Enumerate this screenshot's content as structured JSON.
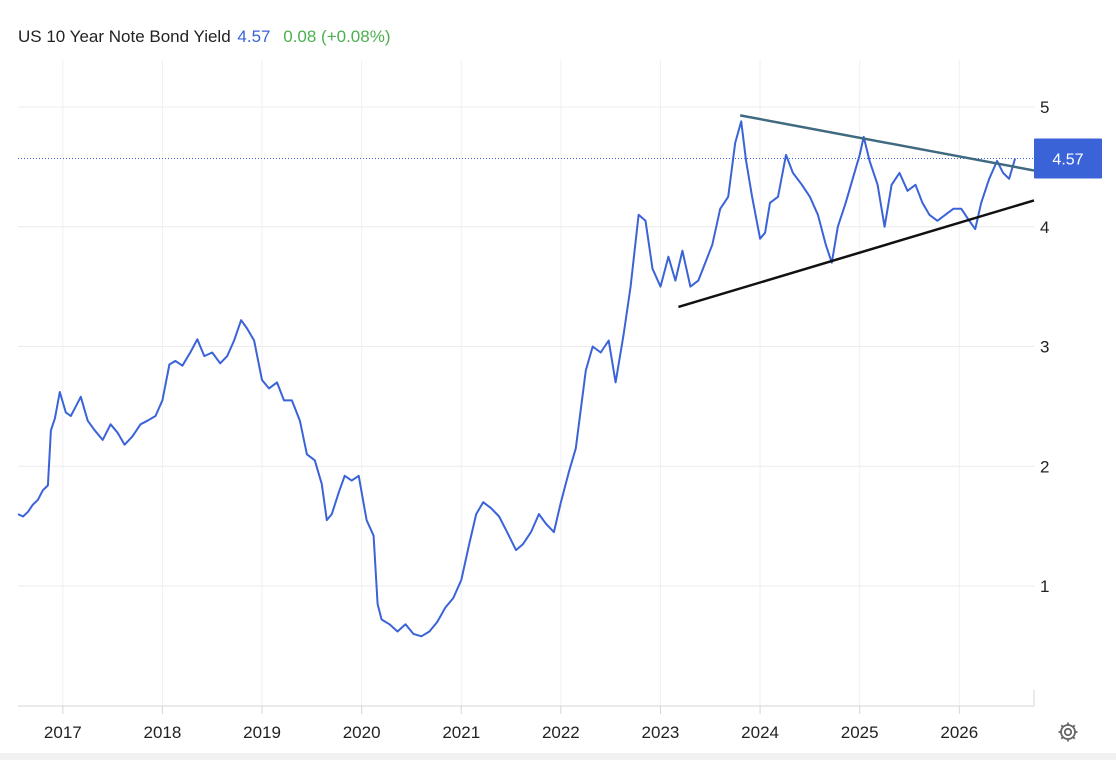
{
  "header": {
    "title": "US 10 Year Note Bond Yield",
    "price": "4.57",
    "change": "0.08 (+0.08%)"
  },
  "settings_icon": "gear-icon",
  "colors": {
    "line": "#3a63d8",
    "change_positive": "#4caf50",
    "upper_trendline": "#3f6a80",
    "lower_trendline": "#111111",
    "badge": "#3a63d8"
  },
  "chart_data": {
    "type": "line",
    "title": "",
    "xlabel": "",
    "ylabel": "",
    "x_ticks": [
      "2017",
      "2018",
      "2019",
      "2020",
      "2021",
      "2022",
      "2023",
      "2024",
      "2025",
      "2026"
    ],
    "y_ticks": [
      1,
      2,
      3,
      4,
      5
    ],
    "xlim": [
      2016.55,
      2026.75
    ],
    "ylim": [
      0,
      5.5
    ],
    "grid": true,
    "y_axis_position": "right",
    "last_value_label": "4.57",
    "last_value": 4.57,
    "series": [
      {
        "points": [
          [
            2016.55,
            1.6
          ],
          [
            2016.6,
            1.58
          ],
          [
            2016.65,
            1.62
          ],
          [
            2016.7,
            1.68
          ],
          [
            2016.75,
            1.72
          ],
          [
            2016.8,
            1.8
          ],
          [
            2016.85,
            1.84
          ],
          [
            2016.88,
            2.3
          ],
          [
            2016.92,
            2.4
          ],
          [
            2016.97,
            2.62
          ],
          [
            2017.03,
            2.45
          ],
          [
            2017.08,
            2.42
          ],
          [
            2017.13,
            2.5
          ],
          [
            2017.18,
            2.58
          ],
          [
            2017.25,
            2.38
          ],
          [
            2017.32,
            2.3
          ],
          [
            2017.4,
            2.22
          ],
          [
            2017.48,
            2.35
          ],
          [
            2017.55,
            2.28
          ],
          [
            2017.62,
            2.18
          ],
          [
            2017.7,
            2.25
          ],
          [
            2017.78,
            2.35
          ],
          [
            2017.85,
            2.38
          ],
          [
            2017.93,
            2.42
          ],
          [
            2018.0,
            2.55
          ],
          [
            2018.07,
            2.85
          ],
          [
            2018.13,
            2.88
          ],
          [
            2018.2,
            2.84
          ],
          [
            2018.28,
            2.95
          ],
          [
            2018.35,
            3.06
          ],
          [
            2018.42,
            2.92
          ],
          [
            2018.5,
            2.95
          ],
          [
            2018.58,
            2.86
          ],
          [
            2018.65,
            2.92
          ],
          [
            2018.72,
            3.05
          ],
          [
            2018.79,
            3.22
          ],
          [
            2018.85,
            3.15
          ],
          [
            2018.92,
            3.05
          ],
          [
            2019.0,
            2.72
          ],
          [
            2019.07,
            2.65
          ],
          [
            2019.15,
            2.7
          ],
          [
            2019.22,
            2.55
          ],
          [
            2019.3,
            2.55
          ],
          [
            2019.38,
            2.38
          ],
          [
            2019.45,
            2.1
          ],
          [
            2019.53,
            2.05
          ],
          [
            2019.6,
            1.85
          ],
          [
            2019.65,
            1.55
          ],
          [
            2019.7,
            1.6
          ],
          [
            2019.77,
            1.78
          ],
          [
            2019.83,
            1.92
          ],
          [
            2019.9,
            1.88
          ],
          [
            2019.97,
            1.92
          ],
          [
            2020.05,
            1.55
          ],
          [
            2020.12,
            1.42
          ],
          [
            2020.16,
            0.85
          ],
          [
            2020.2,
            0.72
          ],
          [
            2020.28,
            0.68
          ],
          [
            2020.36,
            0.62
          ],
          [
            2020.44,
            0.68
          ],
          [
            2020.52,
            0.6
          ],
          [
            2020.6,
            0.58
          ],
          [
            2020.68,
            0.62
          ],
          [
            2020.76,
            0.7
          ],
          [
            2020.84,
            0.82
          ],
          [
            2020.92,
            0.9
          ],
          [
            2021.0,
            1.05
          ],
          [
            2021.08,
            1.35
          ],
          [
            2021.15,
            1.6
          ],
          [
            2021.22,
            1.7
          ],
          [
            2021.3,
            1.65
          ],
          [
            2021.38,
            1.58
          ],
          [
            2021.46,
            1.45
          ],
          [
            2021.55,
            1.3
          ],
          [
            2021.62,
            1.35
          ],
          [
            2021.7,
            1.45
          ],
          [
            2021.78,
            1.6
          ],
          [
            2021.85,
            1.52
          ],
          [
            2021.93,
            1.45
          ],
          [
            2022.0,
            1.7
          ],
          [
            2022.08,
            1.95
          ],
          [
            2022.15,
            2.15
          ],
          [
            2022.25,
            2.8
          ],
          [
            2022.32,
            3.0
          ],
          [
            2022.4,
            2.95
          ],
          [
            2022.48,
            3.05
          ],
          [
            2022.55,
            2.7
          ],
          [
            2022.63,
            3.1
          ],
          [
            2022.7,
            3.5
          ],
          [
            2022.78,
            4.1
          ],
          [
            2022.85,
            4.05
          ],
          [
            2022.92,
            3.65
          ],
          [
            2023.0,
            3.5
          ],
          [
            2023.08,
            3.75
          ],
          [
            2023.15,
            3.55
          ],
          [
            2023.22,
            3.8
          ],
          [
            2023.3,
            3.5
          ],
          [
            2023.38,
            3.55
          ],
          [
            2023.45,
            3.7
          ],
          [
            2023.52,
            3.85
          ],
          [
            2023.6,
            4.15
          ],
          [
            2023.68,
            4.25
          ],
          [
            2023.75,
            4.7
          ],
          [
            2023.81,
            4.88
          ],
          [
            2023.86,
            4.55
          ],
          [
            2023.92,
            4.25
          ],
          [
            2024.0,
            3.9
          ],
          [
            2024.05,
            3.95
          ],
          [
            2024.1,
            4.2
          ],
          [
            2024.18,
            4.25
          ],
          [
            2024.26,
            4.6
          ],
          [
            2024.33,
            4.45
          ],
          [
            2024.42,
            4.35
          ],
          [
            2024.5,
            4.25
          ],
          [
            2024.58,
            4.1
          ],
          [
            2024.66,
            3.85
          ],
          [
            2024.72,
            3.7
          ],
          [
            2024.78,
            4.0
          ],
          [
            2024.86,
            4.2
          ],
          [
            2024.93,
            4.4
          ],
          [
            2025.0,
            4.6
          ],
          [
            2025.04,
            4.75
          ],
          [
            2025.1,
            4.55
          ],
          [
            2025.18,
            4.35
          ],
          [
            2025.25,
            4.0
          ],
          [
            2025.32,
            4.35
          ],
          [
            2025.4,
            4.45
          ],
          [
            2025.48,
            4.3
          ],
          [
            2025.56,
            4.35
          ],
          [
            2025.63,
            4.2
          ],
          [
            2025.7,
            4.1
          ],
          [
            2025.78,
            4.05
          ],
          [
            2025.86,
            4.1
          ],
          [
            2025.94,
            4.15
          ],
          [
            2026.02,
            4.15
          ],
          [
            2026.1,
            4.05
          ],
          [
            2026.16,
            3.98
          ],
          [
            2026.22,
            4.2
          ],
          [
            2026.3,
            4.4
          ],
          [
            2026.38,
            4.55
          ],
          [
            2026.44,
            4.45
          ],
          [
            2026.5,
            4.4
          ],
          [
            2026.56,
            4.57
          ]
        ]
      }
    ],
    "trendlines": [
      {
        "name": "upper",
        "from": [
          2023.8,
          4.93
        ],
        "to": [
          2026.75,
          4.47
        ]
      },
      {
        "name": "lower",
        "from": [
          2023.18,
          3.33
        ],
        "to": [
          2026.75,
          4.22
        ]
      }
    ]
  }
}
